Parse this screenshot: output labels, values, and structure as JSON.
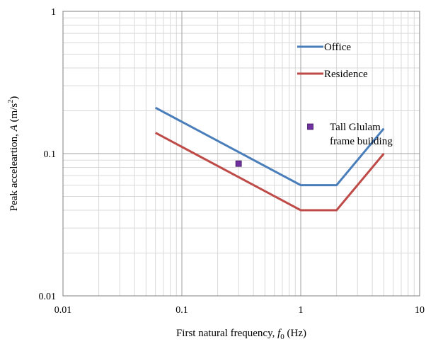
{
  "chart_data": {
    "type": "line",
    "xscale": "log",
    "yscale": "log",
    "xlim": [
      0.01,
      10
    ],
    "ylim": [
      0.01,
      1
    ],
    "grid": true,
    "legend_position": "top-right",
    "xlabel": {
      "pre": "First natural frequency, ",
      "sym": "f",
      "sub": "0",
      "post": " (Hz)"
    },
    "ylabel": {
      "pre": "Peak accelеartion, ",
      "sym": "A",
      "post": " (m/s",
      "sup": "2",
      "end": ")"
    },
    "xticks": [
      {
        "value": 0.01,
        "label": "0.01"
      },
      {
        "value": 0.1,
        "label": "0.1"
      },
      {
        "value": 1,
        "label": "1"
      },
      {
        "value": 10,
        "label": "10"
      }
    ],
    "yticks": [
      {
        "value": 0.01,
        "label": "0.01"
      },
      {
        "value": 0.1,
        "label": "0.1"
      },
      {
        "value": 1,
        "label": "1"
      }
    ],
    "series": [
      {
        "name": "Office",
        "kind": "line",
        "color": "#4a7ebb",
        "points": [
          [
            0.06,
            0.21
          ],
          [
            1,
            0.06
          ],
          [
            2,
            0.06
          ],
          [
            5,
            0.15
          ]
        ]
      },
      {
        "name": "Residence",
        "kind": "line",
        "color": "#be4b48",
        "points": [
          [
            0.06,
            0.14
          ],
          [
            1,
            0.04
          ],
          [
            2,
            0.04
          ],
          [
            5,
            0.1
          ]
        ]
      },
      {
        "name": "Tall Glulam frame building",
        "kind": "marker",
        "color": "#7030a0",
        "legend_lines": [
          "Tall Glulam",
          "frame building"
        ],
        "points": [
          [
            0.3,
            0.085
          ]
        ]
      }
    ]
  }
}
